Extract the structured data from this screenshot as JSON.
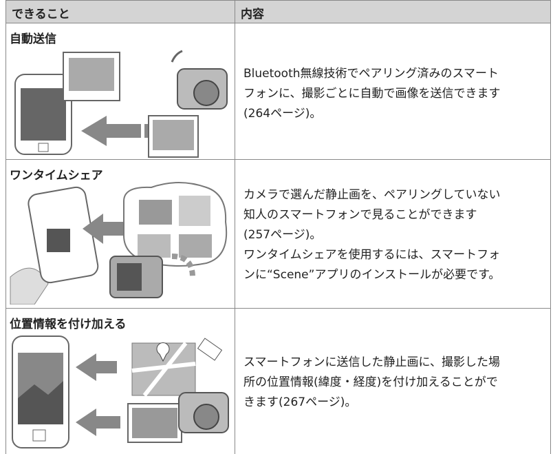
{
  "table": {
    "header": [
      "できること",
      "内容"
    ],
    "rows": [
      {
        "title": "自動送信",
        "description": [
          "Bluetooth無線技術でペアリング済みのスマート",
          "フォンに、撮影ごとに自動で画像を送信できます",
          "(264ページ)。"
        ]
      },
      {
        "title": "ワンタイムシェア",
        "description": [
          "カメラで選んだ静止画を、ペアリングしていない",
          "知人のスマートフォンで見ることができます",
          "(257ページ)。",
          "ワンタイムシェアを使用するには、スマートフォ",
          "ンに“Scene”アプリのインストールが必要です。"
        ]
      },
      {
        "title": "位置情報を付け加える",
        "description": [
          "スマートフォンに送信した静止画に、撮影した場",
          "所の位置情報(緯度・経度)を付け加えることがで",
          "きます(267ページ)。"
        ]
      }
    ]
  }
}
